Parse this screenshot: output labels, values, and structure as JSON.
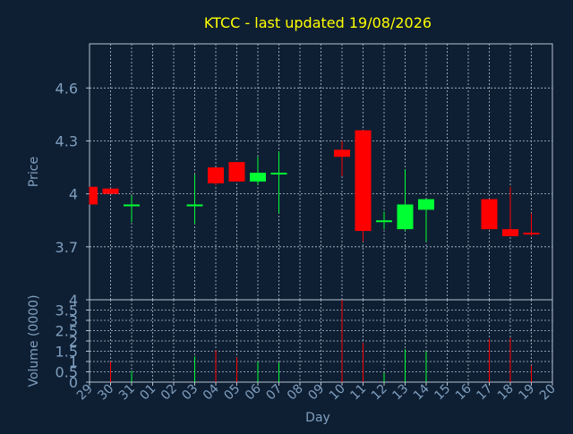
{
  "chart_data": [
    {
      "type": "candlestick",
      "title": "KTCC - last updated 19/08/2026",
      "ylabel": "Price",
      "ylim": [
        3.4,
        4.85
      ],
      "yticks": [
        "3.7",
        "4",
        "4.3",
        "4.6"
      ],
      "grid": true,
      "categories": [
        "29",
        "30",
        "31",
        "01",
        "02",
        "03",
        "04",
        "05",
        "06",
        "07",
        "08",
        "09",
        "10",
        "11",
        "12",
        "13",
        "14",
        "15",
        "16",
        "17",
        "18",
        "19",
        "20"
      ],
      "candles": [
        {
          "day": "29",
          "open": 4.04,
          "close": 3.94,
          "high": 4.04,
          "low": 3.94
        },
        {
          "day": "30",
          "open": 4.03,
          "close": 4.0,
          "high": 4.03,
          "low": 4.0
        },
        {
          "day": "31",
          "open": 3.93,
          "close": 3.94,
          "high": 3.99,
          "low": 3.84
        },
        {
          "day": "03",
          "open": 3.93,
          "close": 3.94,
          "high": 4.11,
          "low": 3.83
        },
        {
          "day": "04",
          "open": 4.15,
          "close": 4.06,
          "high": 4.15,
          "low": 4.05
        },
        {
          "day": "05",
          "open": 4.18,
          "close": 4.07,
          "high": 4.18,
          "low": 4.07
        },
        {
          "day": "06",
          "open": 4.07,
          "close": 4.12,
          "high": 4.21,
          "low": 4.05
        },
        {
          "day": "07",
          "open": 4.11,
          "close": 4.12,
          "high": 4.24,
          "low": 3.89
        },
        {
          "day": "10",
          "open": 4.25,
          "close": 4.21,
          "high": 4.3,
          "low": 4.1
        },
        {
          "day": "11",
          "open": 4.36,
          "close": 3.79,
          "high": 4.36,
          "low": 3.73
        },
        {
          "day": "12",
          "open": 3.84,
          "close": 3.85,
          "high": 3.9,
          "low": 3.8
        },
        {
          "day": "13",
          "open": 3.8,
          "close": 3.94,
          "high": 4.14,
          "low": 3.79
        },
        {
          "day": "14",
          "open": 3.91,
          "close": 3.97,
          "high": 3.97,
          "low": 3.73
        },
        {
          "day": "17",
          "open": 3.97,
          "close": 3.8,
          "high": 3.97,
          "low": 3.8
        },
        {
          "day": "18",
          "open": 3.8,
          "close": 3.76,
          "high": 4.04,
          "low": 3.76
        },
        {
          "day": "19",
          "open": 3.78,
          "close": 3.77,
          "high": 3.89,
          "low": 3.76
        }
      ]
    },
    {
      "type": "bar",
      "xlabel": "Day",
      "ylabel": "Volume (0000)",
      "ylim": [
        0,
        4
      ],
      "yticks": [
        "0",
        "0.5",
        "1",
        "1.5",
        "2",
        "2.5",
        "3",
        "3.5",
        "4"
      ],
      "grid": true,
      "categories": [
        "29",
        "30",
        "31",
        "01",
        "02",
        "03",
        "04",
        "05",
        "06",
        "07",
        "08",
        "09",
        "10",
        "11",
        "12",
        "13",
        "14",
        "15",
        "16",
        "17",
        "18",
        "19",
        "20"
      ],
      "bars": [
        {
          "day": "30",
          "value": 1.0,
          "direction": "down"
        },
        {
          "day": "31",
          "value": 0.55,
          "direction": "up"
        },
        {
          "day": "03",
          "value": 1.25,
          "direction": "up"
        },
        {
          "day": "04",
          "value": 1.55,
          "direction": "down"
        },
        {
          "day": "05",
          "value": 1.2,
          "direction": "down"
        },
        {
          "day": "06",
          "value": 1.0,
          "direction": "up"
        },
        {
          "day": "07",
          "value": 0.95,
          "direction": "up"
        },
        {
          "day": "10",
          "value": 4.0,
          "direction": "down"
        },
        {
          "day": "11",
          "value": 1.9,
          "direction": "down"
        },
        {
          "day": "12",
          "value": 0.45,
          "direction": "up"
        },
        {
          "day": "13",
          "value": 1.6,
          "direction": "up"
        },
        {
          "day": "14",
          "value": 1.5,
          "direction": "up"
        },
        {
          "day": "17",
          "value": 2.1,
          "direction": "down"
        },
        {
          "day": "18",
          "value": 2.15,
          "direction": "down"
        },
        {
          "day": "19",
          "value": 0.8,
          "direction": "down"
        }
      ]
    }
  ],
  "colors": {
    "background": "#0f1f33",
    "title": "#ffff00",
    "axis_text": "#7f9fbf",
    "grid": "#b4c2d2",
    "frame": "#b4c2d2",
    "up": "#00ff33",
    "down": "#ff0000"
  }
}
